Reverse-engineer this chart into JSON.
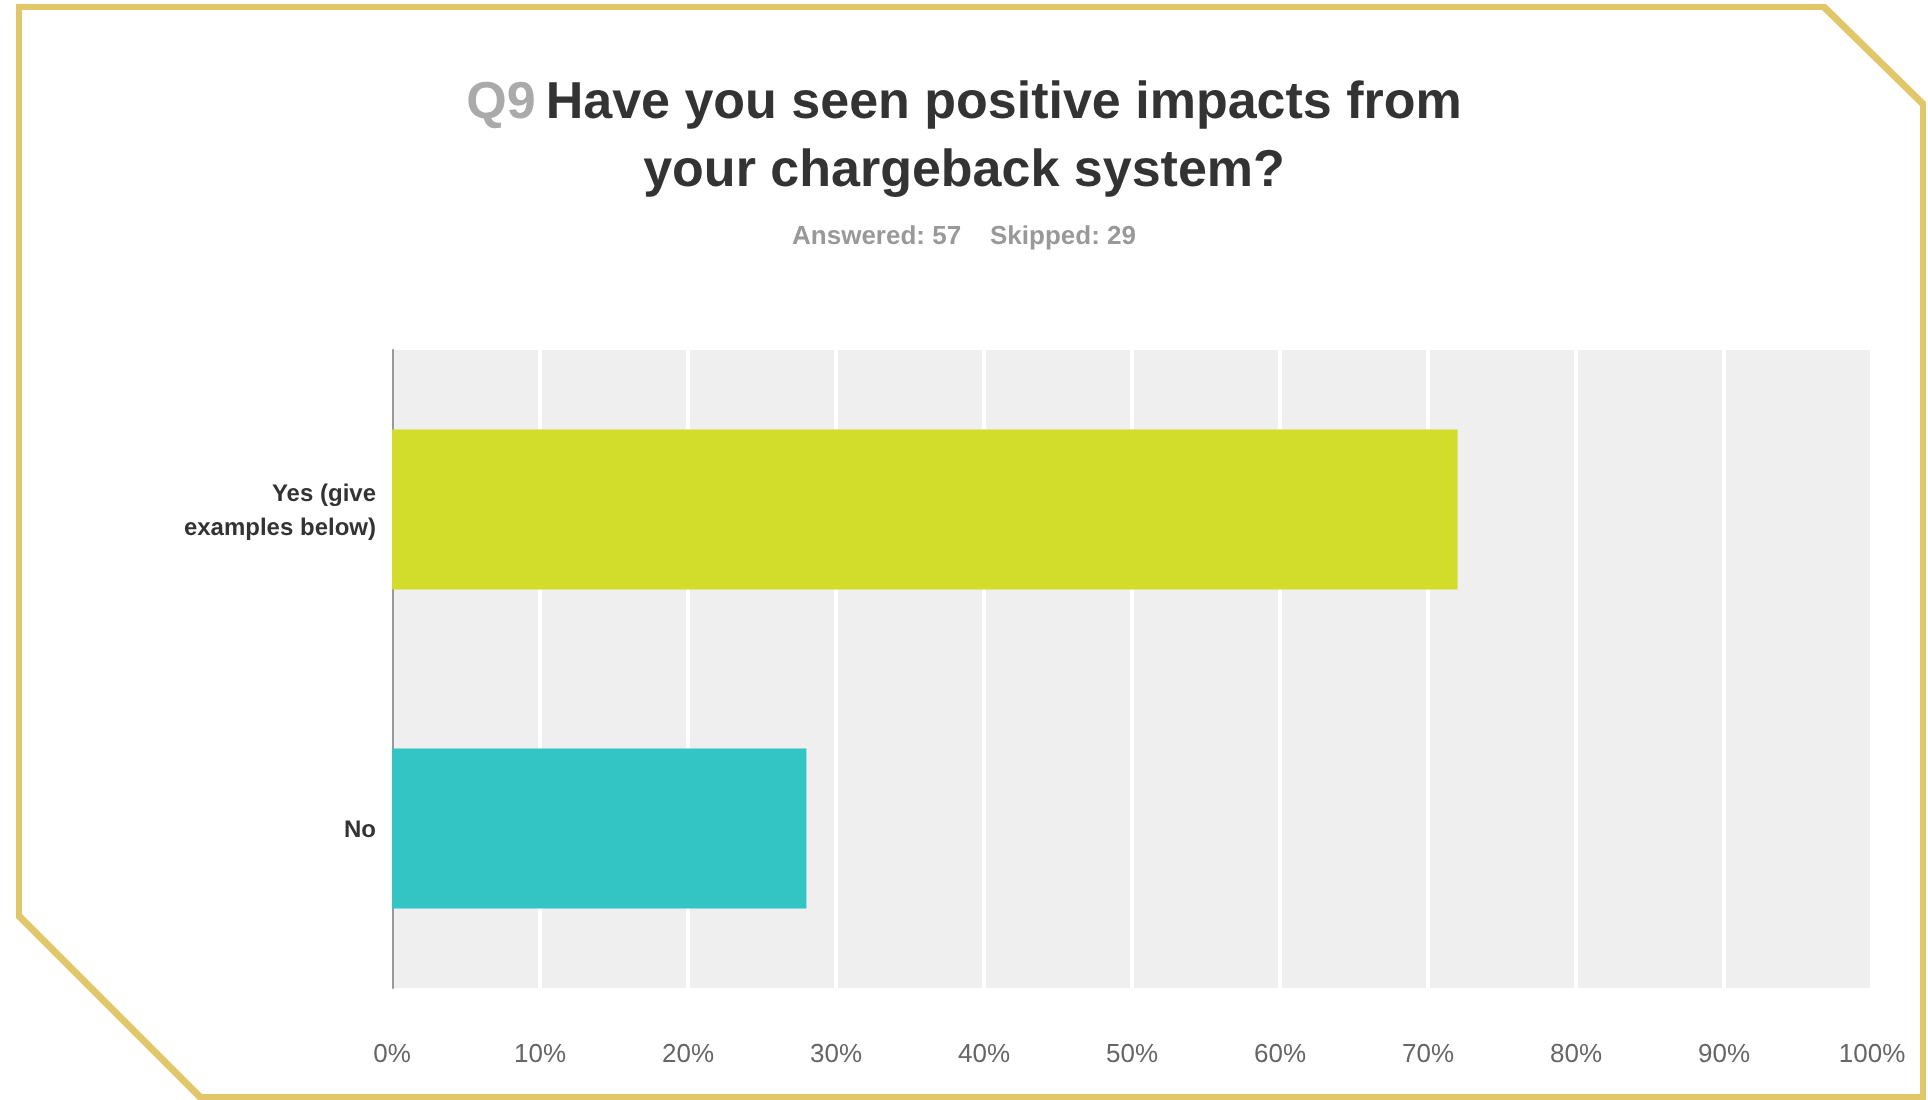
{
  "chart_data": {
    "type": "bar",
    "orientation": "horizontal",
    "title": "Q9 Have you seen positive impacts from your chargeback system?",
    "subtitle": "Answered: 57    Skipped: 29",
    "categories": [
      "Yes (give examples below)",
      "No"
    ],
    "values": [
      72,
      28
    ],
    "colors": [
      "#d2dc2a",
      "#33c4c4"
    ],
    "xlim": [
      0,
      100
    ],
    "xticks": [
      {
        "value": 0,
        "label": "0%"
      },
      {
        "value": 10,
        "label": "10%"
      },
      {
        "value": 20,
        "label": "20%"
      },
      {
        "value": 30,
        "label": "30%"
      },
      {
        "value": 40,
        "label": "40%"
      },
      {
        "value": 50,
        "label": "50%"
      },
      {
        "value": 60,
        "label": "60%"
      },
      {
        "value": 70,
        "label": "70%"
      },
      {
        "value": 80,
        "label": "80%"
      },
      {
        "value": 90,
        "label": "90%"
      },
      {
        "value": 100,
        "label": "100%"
      }
    ],
    "grid": "x"
  }
}
